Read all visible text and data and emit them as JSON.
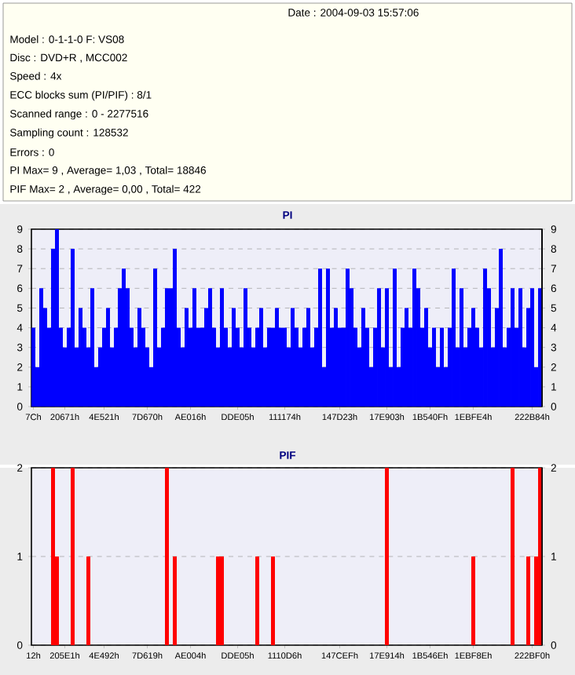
{
  "chart_data": [
    {
      "type": "other",
      "annotations": [
        "Date : 2004-09-03 15:57:06",
        "Model : 0-1-1-0 F: VS08",
        "Disc : DVD+R , MCC002",
        "Speed : 4x",
        "ECC blocks sum (PI/PIF) : 8/1",
        "Scanned range : 0 - 2277516",
        "Sampling count : 128532",
        "Errors : 0",
        "PI Max= 9 , Average= 1,03 , Total= 18846",
        "PIF Max= 2 , Average= 0,00 , Total= 422"
      ]
    },
    {
      "type": "bar",
      "title": "PI",
      "color": "#0000ff",
      "grid": "y",
      "categories": [
        "7Ch",
        null,
        null,
        null,
        null,
        null,
        null,
        null,
        "20671h",
        null,
        null,
        null,
        null,
        null,
        null,
        null,
        null,
        null,
        "4E521h",
        null,
        null,
        null,
        null,
        null,
        null,
        null,
        null,
        null,
        null,
        "7D670h",
        null,
        null,
        null,
        null,
        null,
        null,
        null,
        null,
        null,
        null,
        "AE016h",
        null,
        null,
        null,
        null,
        null,
        null,
        null,
        null,
        null,
        null,
        null,
        "DDE05h",
        null,
        null,
        null,
        null,
        null,
        null,
        null,
        null,
        null,
        null,
        null,
        "111174h",
        null,
        null,
        null,
        null,
        null,
        null,
        null,
        null,
        null,
        null,
        null,
        null,
        null,
        "147D23h",
        null,
        null,
        null,
        null,
        null,
        null,
        null,
        null,
        null,
        null,
        null,
        "17E903h",
        null,
        null,
        null,
        null,
        null,
        null,
        null,
        null,
        null,
        null,
        "1B540Fh",
        null,
        null,
        null,
        null,
        null,
        null,
        null,
        null,
        null,
        null,
        "1EBFE4h",
        null,
        null,
        null,
        null,
        null,
        null,
        null,
        null,
        null,
        null,
        null,
        null,
        null,
        null,
        "222B84h",
        null,
        null
      ],
      "values": [
        4,
        2,
        6,
        5,
        4,
        8,
        9,
        4,
        3,
        4,
        8,
        3,
        5,
        4,
        3,
        6,
        2,
        3,
        4,
        5,
        3,
        4,
        6,
        7,
        6,
        4,
        3,
        5,
        4,
        3,
        2,
        7,
        3,
        4,
        6,
        6,
        8,
        4,
        3,
        5,
        4,
        6,
        4,
        4,
        5,
        6,
        4,
        3,
        6,
        4,
        3,
        5,
        4,
        3,
        6,
        4,
        3,
        4,
        5,
        3,
        4,
        4,
        5,
        4,
        4,
        3,
        5,
        4,
        3,
        4,
        5,
        3,
        4,
        7,
        2,
        7,
        4,
        5,
        4,
        4,
        7,
        6,
        4,
        3,
        5,
        4,
        2,
        4,
        6,
        3,
        6,
        2,
        7,
        2,
        4,
        5,
        4,
        7,
        6,
        4,
        5,
        3,
        4,
        2,
        4,
        2,
        4,
        7,
        3,
        6,
        3,
        4,
        5,
        4,
        3,
        7,
        6,
        3,
        5,
        8,
        3,
        4,
        6,
        4,
        6,
        3,
        5,
        6,
        2,
        6
      ],
      "ylim": [
        0,
        9
      ],
      "yticks": [
        0,
        1,
        2,
        3,
        4,
        5,
        6,
        7,
        8,
        9
      ],
      "y2lim": [
        0,
        9
      ],
      "y2ticks": [
        0,
        1,
        2,
        3,
        4,
        5,
        6,
        7,
        8,
        9
      ]
    },
    {
      "type": "bar",
      "title": "PIF",
      "color": "#ff0000",
      "grid": "y",
      "categories": [
        "12h",
        null,
        null,
        null,
        null,
        null,
        null,
        null,
        "205E1h",
        null,
        null,
        null,
        null,
        null,
        null,
        null,
        null,
        null,
        "4E492h",
        null,
        null,
        null,
        null,
        null,
        null,
        null,
        null,
        null,
        null,
        "7D619h",
        null,
        null,
        null,
        null,
        null,
        null,
        null,
        null,
        null,
        null,
        "AE004h",
        null,
        null,
        null,
        null,
        null,
        null,
        null,
        null,
        null,
        null,
        null,
        "DDE05h",
        null,
        null,
        null,
        null,
        null,
        null,
        null,
        null,
        null,
        null,
        null,
        "1110D6h",
        null,
        null,
        null,
        null,
        null,
        null,
        null,
        null,
        null,
        null,
        null,
        null,
        null,
        "147CEFh",
        null,
        null,
        null,
        null,
        null,
        null,
        null,
        null,
        null,
        null,
        null,
        "17E914h",
        null,
        null,
        null,
        null,
        null,
        null,
        null,
        null,
        null,
        null,
        "1B546Eh",
        null,
        null,
        null,
        null,
        null,
        null,
        null,
        null,
        null,
        null,
        "1EBF8Eh",
        null,
        null,
        null,
        null,
        null,
        null,
        null,
        null,
        null,
        null,
        null,
        null,
        null,
        null,
        "222BF0h",
        null,
        null
      ],
      "values": [
        0,
        0,
        0,
        0,
        0,
        2,
        1,
        0,
        0,
        0,
        2,
        0,
        0,
        0,
        1,
        0,
        0,
        0,
        0,
        0,
        0,
        0,
        0,
        0,
        0,
        0,
        0,
        0,
        0,
        0,
        0,
        0,
        0,
        0,
        2,
        0,
        1,
        0,
        0,
        0,
        0,
        0,
        0,
        0,
        0,
        0,
        0,
        1,
        1,
        0,
        0,
        0,
        0,
        0,
        0,
        0,
        0,
        1,
        0,
        0,
        0,
        1,
        0,
        0,
        0,
        0,
        0,
        0,
        0,
        0,
        0,
        0,
        0,
        0,
        0,
        0,
        0,
        0,
        0,
        0,
        0,
        0,
        0,
        0,
        0,
        0,
        0,
        0,
        0,
        0,
        2,
        0,
        0,
        0,
        0,
        0,
        0,
        0,
        0,
        0,
        0,
        0,
        0,
        0,
        0,
        0,
        0,
        0,
        0,
        0,
        0,
        0,
        1,
        0,
        0,
        0,
        0,
        0,
        0,
        0,
        0,
        0,
        2,
        0,
        0,
        0,
        1,
        0,
        1,
        2
      ],
      "ylim": [
        0,
        2
      ],
      "yticks": [
        0,
        1,
        2
      ],
      "y2lim": [
        0,
        2
      ],
      "y2ticks": [
        0,
        1,
        2
      ]
    }
  ]
}
